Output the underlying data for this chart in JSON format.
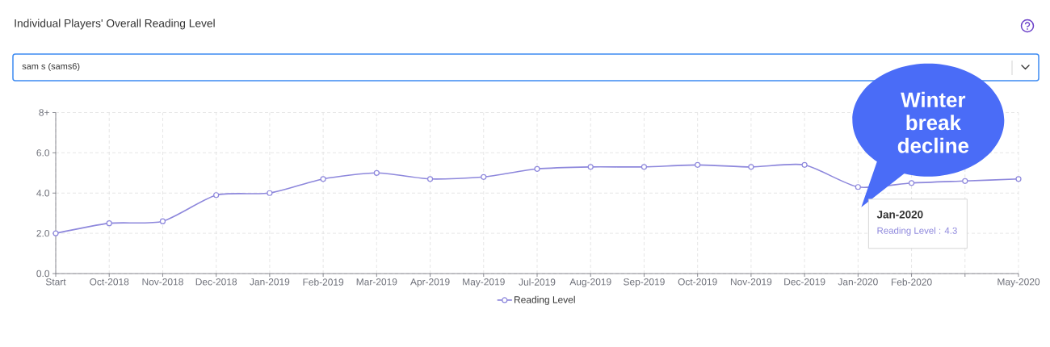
{
  "chart_data": {
    "type": "line",
    "title": "Individual Players' Overall Reading Level",
    "categories": [
      "Start",
      "Oct-2018",
      "Nov-2018",
      "Dec-2018",
      "Jan-2019",
      "Feb-2019",
      "Mar-2019",
      "Apr-2019",
      "May-2019",
      "Jul-2019",
      "Aug-2019",
      "Sep-2019",
      "Oct-2019",
      "Nov-2019",
      "Dec-2019",
      "Jan-2020",
      "Feb-2020",
      null,
      "May-2020"
    ],
    "series": [
      {
        "name": "Reading Level",
        "color": "#8d87dc",
        "values": [
          2.0,
          2.5,
          2.6,
          3.9,
          4.0,
          4.7,
          5.0,
          4.7,
          4.8,
          5.2,
          5.3,
          5.3,
          5.4,
          5.3,
          5.4,
          4.3,
          4.5,
          4.6,
          4.7
        ]
      }
    ],
    "ylim": [
      0,
      8
    ],
    "yticks": [
      {
        "value": 0,
        "label": "0.0"
      },
      {
        "value": 2,
        "label": "2.0"
      },
      {
        "value": 4,
        "label": "4.0"
      },
      {
        "value": 6,
        "label": "6.0"
      },
      {
        "value": 8,
        "label": "8+"
      }
    ],
    "grid": true,
    "legend": "bottom",
    "marker": "circle",
    "annotations": [
      "sam s (sams6)",
      {
        "text": "Winter break decline",
        "x": "Jan-2020",
        "y": 4.3
      },
      {
        "text": "Jan-2020",
        "x": "Jan-2020",
        "y": 4.3
      },
      "Reading Level : 4.3"
    ]
  }
}
